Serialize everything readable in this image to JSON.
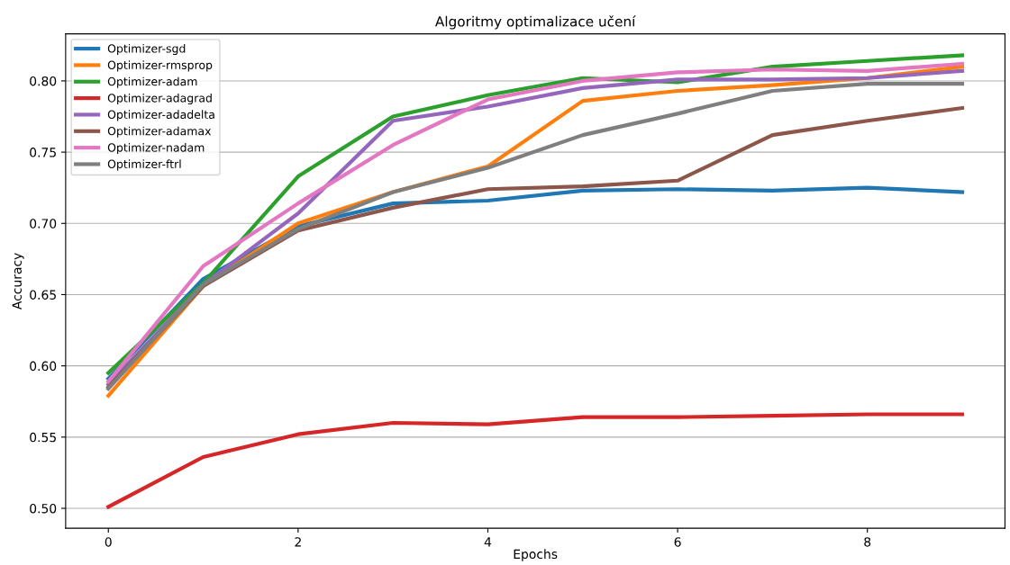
{
  "chart_data": {
    "type": "line",
    "title": "Algoritmy optimalizace učení",
    "xlabel": "Epochs",
    "ylabel": "Accuracy",
    "x": [
      0,
      1,
      2,
      3,
      4,
      5,
      6,
      7,
      8,
      9
    ],
    "series": [
      {
        "name": "Optimizer-sgd",
        "color": "#1f77b4",
        "values": [
          0.591,
          0.661,
          0.698,
          0.714,
          0.716,
          0.723,
          0.724,
          0.723,
          0.725,
          0.722
        ]
      },
      {
        "name": "Optimizer-rmsprop",
        "color": "#ff7f0e",
        "values": [
          0.579,
          0.656,
          0.7,
          0.722,
          0.74,
          0.786,
          0.793,
          0.797,
          0.802,
          0.81
        ]
      },
      {
        "name": "Optimizer-adam",
        "color": "#2ca02c",
        "values": [
          0.595,
          0.658,
          0.733,
          0.775,
          0.79,
          0.802,
          0.799,
          0.81,
          0.814,
          0.818
        ]
      },
      {
        "name": "Optimizer-adagrad",
        "color": "#d62728",
        "values": [
          0.501,
          0.536,
          0.552,
          0.56,
          0.559,
          0.564,
          0.564,
          0.565,
          0.566,
          0.566
        ]
      },
      {
        "name": "Optimizer-adadelta",
        "color": "#9467bd",
        "values": [
          0.587,
          0.657,
          0.707,
          0.772,
          0.782,
          0.795,
          0.801,
          0.801,
          0.802,
          0.807
        ]
      },
      {
        "name": "Optimizer-adamax",
        "color": "#8c564b",
        "values": [
          0.585,
          0.656,
          0.695,
          0.711,
          0.724,
          0.726,
          0.73,
          0.762,
          0.772,
          0.781
        ]
      },
      {
        "name": "Optimizer-nadam",
        "color": "#e377c2",
        "values": [
          0.589,
          0.67,
          0.714,
          0.755,
          0.787,
          0.8,
          0.806,
          0.808,
          0.807,
          0.812
        ]
      },
      {
        "name": "Optimizer-ftrl",
        "color": "#7f7f7f",
        "values": [
          0.584,
          0.657,
          0.696,
          0.722,
          0.739,
          0.762,
          0.777,
          0.793,
          0.798,
          0.798
        ]
      }
    ],
    "xlim": [
      -0.45,
      9.45
    ],
    "ylim": [
      0.486,
      0.833
    ],
    "xticks": [
      0,
      2,
      4,
      6,
      8
    ],
    "yticks": [
      {
        "value": 0.5,
        "label": "0.50"
      },
      {
        "value": 0.55,
        "label": "0.55"
      },
      {
        "value": 0.6,
        "label": "0.60"
      },
      {
        "value": 0.65,
        "label": "0.65"
      },
      {
        "value": 0.7,
        "label": "0.70"
      },
      {
        "value": 0.75,
        "label": "0.75"
      },
      {
        "value": 0.8,
        "label": "0.80"
      }
    ],
    "grid": "y",
    "legend": "top left"
  }
}
